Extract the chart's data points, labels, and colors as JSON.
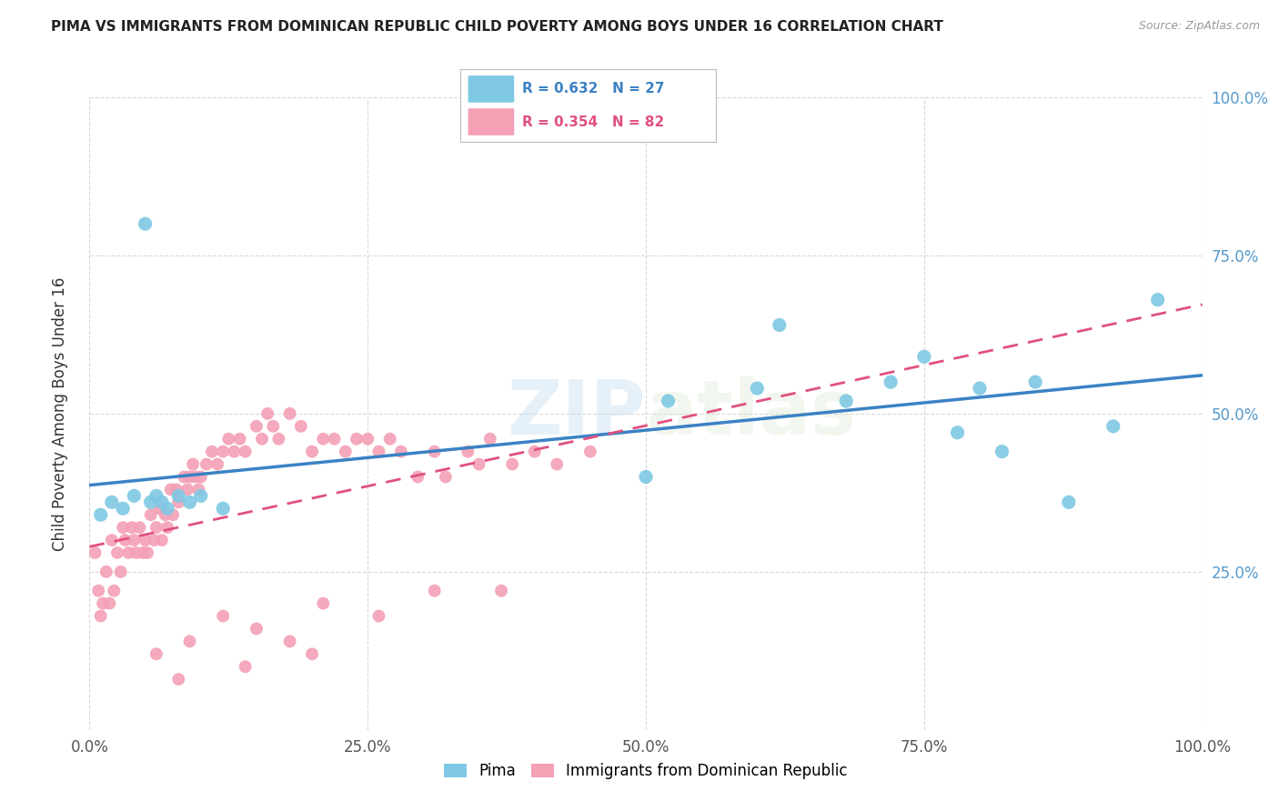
{
  "title": "PIMA VS IMMIGRANTS FROM DOMINICAN REPUBLIC CHILD POVERTY AMONG BOYS UNDER 16 CORRELATION CHART",
  "source": "Source: ZipAtlas.com",
  "ylabel": "Child Poverty Among Boys Under 16",
  "xlim": [
    0.0,
    1.0
  ],
  "ylim": [
    0.0,
    1.0
  ],
  "xticks": [
    0.0,
    0.25,
    0.5,
    0.75,
    1.0
  ],
  "yticks": [
    0.25,
    0.5,
    0.75,
    1.0
  ],
  "xtick_labels": [
    "0.0%",
    "25.0%",
    "50.0%",
    "75.0%",
    "100.0%"
  ],
  "ytick_labels": [
    "25.0%",
    "50.0%",
    "75.0%",
    "100.0%"
  ],
  "blue_color": "#7EC8E3",
  "pink_color": "#F4A0B5",
  "trendline_blue": "#3B82C4",
  "trendline_pink": "#E05080",
  "grid_color": "#D8D8D8",
  "background_color": "#FFFFFF",
  "blue_points_x": [
    0.01,
    0.02,
    0.03,
    0.04,
    0.05,
    0.055,
    0.06,
    0.065,
    0.07,
    0.08,
    0.09,
    0.1,
    0.12,
    0.5,
    0.52,
    0.6,
    0.62,
    0.68,
    0.72,
    0.75,
    0.78,
    0.8,
    0.82,
    0.85,
    0.88,
    0.92,
    0.96
  ],
  "blue_points_y": [
    0.34,
    0.36,
    0.35,
    0.37,
    0.8,
    0.36,
    0.37,
    0.36,
    0.35,
    0.37,
    0.36,
    0.37,
    0.35,
    0.4,
    0.52,
    0.54,
    0.64,
    0.52,
    0.55,
    0.59,
    0.47,
    0.54,
    0.44,
    0.55,
    0.36,
    0.48,
    0.68
  ],
  "pink_points_x": [
    0.005,
    0.008,
    0.01,
    0.012,
    0.015,
    0.018,
    0.02,
    0.022,
    0.025,
    0.028,
    0.03,
    0.032,
    0.035,
    0.038,
    0.04,
    0.042,
    0.045,
    0.048,
    0.05,
    0.052,
    0.055,
    0.058,
    0.06,
    0.063,
    0.065,
    0.068,
    0.07,
    0.073,
    0.075,
    0.078,
    0.08,
    0.085,
    0.088,
    0.09,
    0.093,
    0.095,
    0.098,
    0.1,
    0.105,
    0.11,
    0.115,
    0.12,
    0.125,
    0.13,
    0.135,
    0.14,
    0.15,
    0.155,
    0.16,
    0.165,
    0.17,
    0.18,
    0.19,
    0.2,
    0.21,
    0.22,
    0.23,
    0.24,
    0.25,
    0.26,
    0.27,
    0.28,
    0.295,
    0.31,
    0.32,
    0.34,
    0.35,
    0.36,
    0.38,
    0.4,
    0.42,
    0.45,
    0.06,
    0.09,
    0.12,
    0.15,
    0.18,
    0.21,
    0.26,
    0.31,
    0.37,
    0.08,
    0.14,
    0.2
  ],
  "pink_points_y": [
    0.28,
    0.22,
    0.18,
    0.2,
    0.25,
    0.2,
    0.3,
    0.22,
    0.28,
    0.25,
    0.32,
    0.3,
    0.28,
    0.32,
    0.3,
    0.28,
    0.32,
    0.28,
    0.3,
    0.28,
    0.34,
    0.3,
    0.32,
    0.35,
    0.3,
    0.34,
    0.32,
    0.38,
    0.34,
    0.38,
    0.36,
    0.4,
    0.38,
    0.4,
    0.42,
    0.4,
    0.38,
    0.4,
    0.42,
    0.44,
    0.42,
    0.44,
    0.46,
    0.44,
    0.46,
    0.44,
    0.48,
    0.46,
    0.5,
    0.48,
    0.46,
    0.5,
    0.48,
    0.44,
    0.46,
    0.46,
    0.44,
    0.46,
    0.46,
    0.44,
    0.46,
    0.44,
    0.4,
    0.44,
    0.4,
    0.44,
    0.42,
    0.46,
    0.42,
    0.44,
    0.42,
    0.44,
    0.12,
    0.14,
    0.18,
    0.16,
    0.14,
    0.2,
    0.18,
    0.22,
    0.22,
    0.08,
    0.1,
    0.12
  ]
}
